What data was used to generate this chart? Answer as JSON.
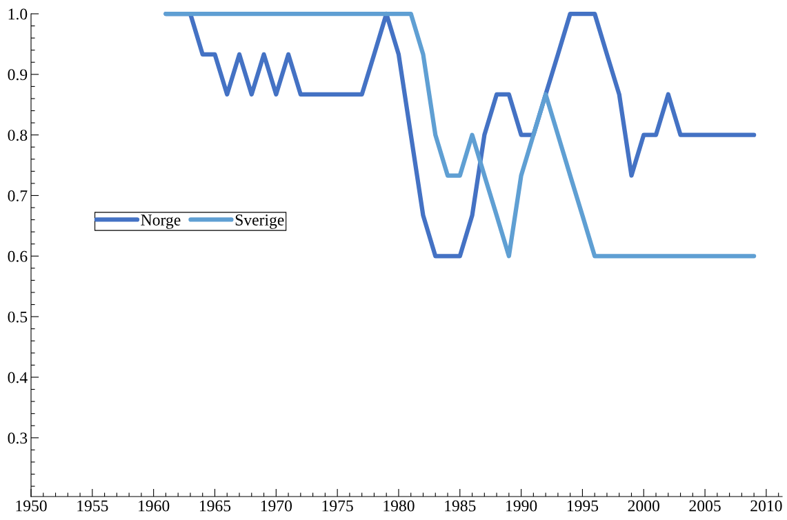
{
  "chart_data": {
    "type": "line",
    "x": [
      1961,
      1962,
      1963,
      1964,
      1965,
      1966,
      1967,
      1968,
      1969,
      1970,
      1971,
      1972,
      1973,
      1974,
      1975,
      1976,
      1977,
      1978,
      1979,
      1980,
      1981,
      1982,
      1983,
      1984,
      1985,
      1986,
      1987,
      1988,
      1989,
      1990,
      1991,
      1992,
      1993,
      1994,
      1995,
      1996,
      1997,
      1998,
      1999,
      2000,
      2001,
      2002,
      2003,
      2004,
      2005,
      2006,
      2007,
      2008,
      2009
    ],
    "series": [
      {
        "name": "Norge",
        "color": "#4472c4",
        "values": [
          1.0,
          1.0,
          1.0,
          0.933,
          0.933,
          0.867,
          0.933,
          0.867,
          0.933,
          0.867,
          0.933,
          0.867,
          0.867,
          0.867,
          0.867,
          0.867,
          0.867,
          0.933,
          1.0,
          0.933,
          0.8,
          0.667,
          0.6,
          0.6,
          0.6,
          0.667,
          0.8,
          0.867,
          0.867,
          0.8,
          0.8,
          0.867,
          0.933,
          1.0,
          1.0,
          1.0,
          0.933,
          0.867,
          0.733,
          0.8,
          0.8,
          0.867,
          0.8,
          0.8,
          0.8,
          0.8,
          0.8,
          0.8,
          0.8
        ]
      },
      {
        "name": "Sverige",
        "color": "#5f9fd3",
        "values": [
          1.0,
          1.0,
          1.0,
          1.0,
          1.0,
          1.0,
          1.0,
          1.0,
          1.0,
          1.0,
          1.0,
          1.0,
          1.0,
          1.0,
          1.0,
          1.0,
          1.0,
          1.0,
          1.0,
          1.0,
          1.0,
          0.933,
          0.8,
          0.733,
          0.733,
          0.8,
          0.733,
          0.667,
          0.6,
          0.733,
          0.8,
          0.867,
          0.8,
          0.733,
          0.667,
          0.6,
          0.6,
          0.6,
          0.6,
          0.6,
          0.6,
          0.6,
          0.6,
          0.6,
          0.6,
          0.6,
          0.6,
          0.6,
          0.6
        ]
      }
    ],
    "xlim": [
      1950,
      2011.3
    ],
    "ylim": [
      0.203,
      1.0
    ],
    "xticks": [
      1950,
      1955,
      1960,
      1965,
      1970,
      1975,
      1980,
      1985,
      1990,
      1995,
      2000,
      2005,
      2010
    ],
    "yticks": [
      {
        "value": 0.3,
        "label": "0.3"
      },
      {
        "value": 0.4,
        "label": "0.4"
      },
      {
        "value": 0.5,
        "label": "0.5"
      },
      {
        "value": 0.6,
        "label": "0.6"
      },
      {
        "value": 0.7,
        "label": "0.7"
      },
      {
        "value": 0.8,
        "label": "0.8"
      },
      {
        "value": 0.9,
        "label": "0.9"
      },
      {
        "value": 1.0,
        "label": "1.0"
      }
    ],
    "legend": "left",
    "grid": false,
    "marker": "none",
    "line_style": "solid"
  }
}
